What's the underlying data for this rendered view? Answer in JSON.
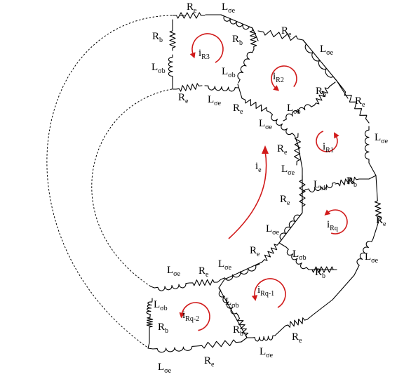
{
  "diagram": {
    "type": "equivalent-circuit",
    "labels": {
      "Re": {
        "main": "R",
        "sub": "e"
      },
      "Rb": {
        "main": "R",
        "sub": "b"
      },
      "Lse": {
        "main": "L",
        "sub": "σe"
      },
      "Lsb": {
        "main": "L",
        "sub": "σb"
      }
    },
    "currents": {
      "iR3": {
        "main": "i",
        "sub": "R3"
      },
      "iR2": {
        "main": "i",
        "sub": "R2"
      },
      "iR1": {
        "main": "i",
        "sub": "R1"
      },
      "iRq": {
        "main": "i",
        "sub": "Rq"
      },
      "iRq1": {
        "main": "i",
        "sub": "Rq-1"
      },
      "iRq2": {
        "main": "i",
        "sub": "Rq-2"
      },
      "ie": {
        "main": "i",
        "sub": "e"
      }
    },
    "colors": {
      "wire": "#000000",
      "loop": "#d11a1a"
    }
  }
}
